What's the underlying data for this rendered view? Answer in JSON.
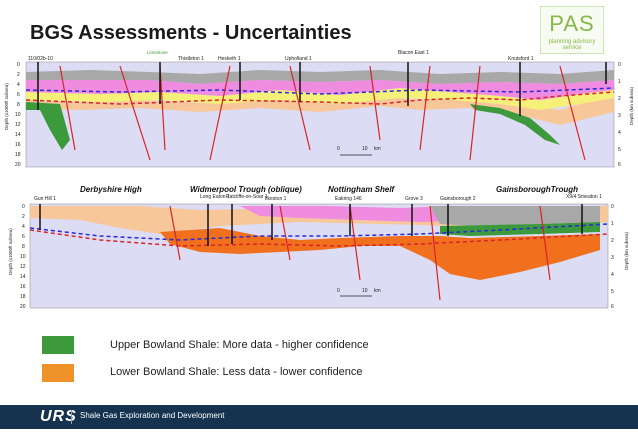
{
  "slide": {
    "title": "BGS Assessments - Uncertainties"
  },
  "logo": {
    "main": "PAS",
    "sub": "planning advisory service"
  },
  "top_section": {
    "wells": [
      "110/02b-10",
      "Thistleton 1",
      "Hesketh 1",
      "Upholland 1",
      "Blacon East 1",
      "Knutsford 1"
    ],
    "feature": "Limestone",
    "depth_axis_left": "Depth (x1000ft subsea)",
    "depth_axis_right": "Depth (km subsea)",
    "left_ticks": [
      "0",
      "2",
      "4",
      "6",
      "8",
      "10",
      "12",
      "14",
      "16",
      "18",
      "20"
    ],
    "right_ticks": [
      "0",
      "1",
      "2",
      "3",
      "4",
      "5",
      "6"
    ],
    "scale": [
      "0",
      "10",
      "km"
    ]
  },
  "bottom_section": {
    "regions": [
      "Derbyshire High",
      "Widmerpool Trough (oblique)",
      "Nottingham Shelf",
      "GainsboroughTrough"
    ],
    "wells": [
      "Gun Hill 1",
      "Long Eaton 1",
      "Ratcliffe-on-Soar 1",
      "Ilkeston 1",
      "Eakring 146",
      "Grove 3",
      "Gainsborough 2",
      "X9/4 Smeaton 1"
    ],
    "depth_axis_left": "Depth (x1000ft subsea)",
    "depth_axis_right": "Depth (km subsea)",
    "left_ticks": [
      "0",
      "2",
      "4",
      "6",
      "8",
      "10",
      "12",
      "14",
      "16",
      "18",
      "20"
    ],
    "right_ticks": [
      "0",
      "1",
      "2",
      "3",
      "4",
      "5",
      "6"
    ],
    "scale": [
      "0",
      "10",
      "km"
    ]
  },
  "legend": [
    {
      "label": "Upper Bowland Shale: More data - higher confidence",
      "color": "#3c9a3c"
    },
    {
      "label": "Lower Bowland Shale: Less data - lower confidence",
      "color": "#f0922a"
    }
  ],
  "footer": {
    "brand": "URS",
    "text": "Shale Gas Exploration and Development"
  },
  "colors": {
    "footer_bg": "#15324f",
    "background_lavender": "#dcdcf4",
    "pink_layer": "#f08ce0",
    "gray_layer": "#a8a8a8",
    "yellow_layer": "#f4f07a",
    "green_layer": "#3c9a3c",
    "orange_layer": "#f0701e",
    "peach_layer": "#f7c79a",
    "fault_red": "#d8242a",
    "dash_blue": "#2a2ad8"
  }
}
